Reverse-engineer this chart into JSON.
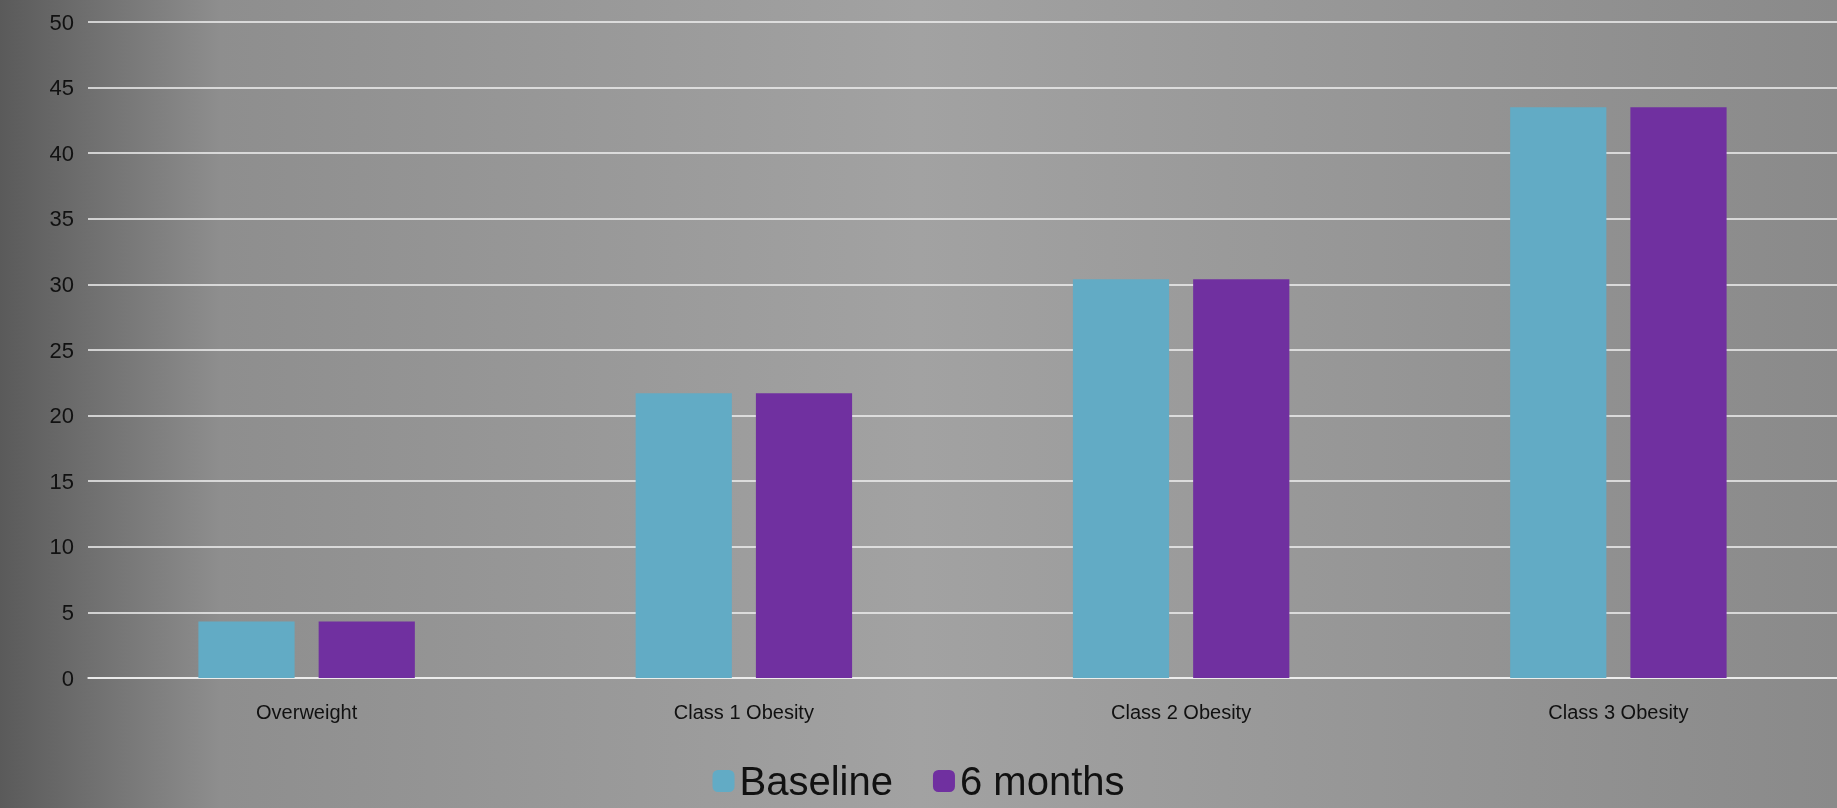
{
  "chart_data": {
    "type": "bar",
    "categories": [
      "Overweight",
      "Class 1 Obesity",
      "Class 2 Obesity",
      "Class 3 Obesity"
    ],
    "series": [
      {
        "name": "Baseline",
        "color": "#62abc5",
        "values": [
          4.3,
          21.7,
          30.4,
          43.5
        ]
      },
      {
        "name": "6 months",
        "color": "#7030a0",
        "values": [
          4.3,
          21.7,
          30.4,
          43.5
        ]
      }
    ],
    "ylim": [
      0,
      50
    ],
    "yticks": [
      0,
      5,
      10,
      15,
      20,
      25,
      30,
      35,
      40,
      45,
      50
    ],
    "grid": "y",
    "legend": "bottom"
  }
}
